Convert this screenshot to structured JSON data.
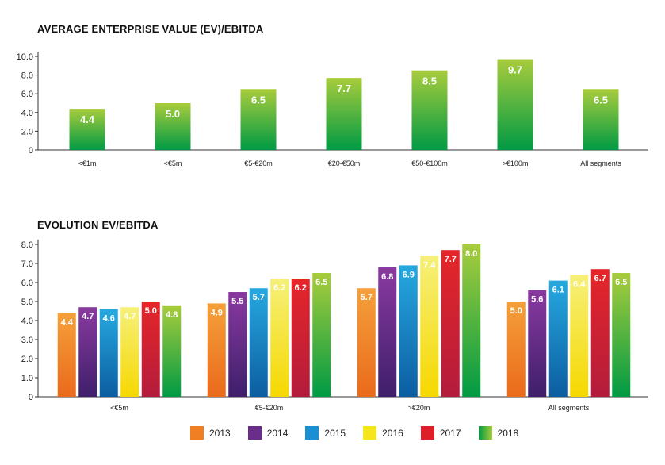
{
  "chart_data": [
    {
      "type": "bar",
      "title": "AVERAGE ENTERPRISE VALUE (EV)/EBITDA",
      "categories": [
        "<€1m",
        "<€5m",
        "€5-€20m",
        "€20-€50m",
        "€50-€100m",
        ">€100m",
        "All segments"
      ],
      "values": [
        4.4,
        5.0,
        6.5,
        7.7,
        8.5,
        9.7,
        6.5
      ],
      "value_labels": [
        "4.4",
        "5.0",
        "6.5",
        "7.7",
        "8.5",
        "9.7",
        "6.5"
      ],
      "yticks": [
        "10.0",
        "8.0",
        "6.0",
        "4.0",
        "2.0",
        "0"
      ],
      "ylim": [
        0,
        10
      ],
      "grid": false,
      "bar_gradient": [
        "#a8cc3c",
        "#009a44"
      ]
    },
    {
      "type": "bar",
      "title": "EVOLUTION EV/EBITDA",
      "categories": [
        "<€5m",
        "€5-€20m",
        ">€20m",
        "All segments"
      ],
      "series": [
        {
          "name": "2013",
          "values": [
            4.4,
            4.9,
            5.7,
            5.0
          ],
          "labels": [
            "4.4",
            "4.9",
            "5.7",
            "5.0"
          ],
          "color": "#f07f24"
        },
        {
          "name": "2014",
          "values": [
            4.7,
            5.5,
            6.8,
            5.6
          ],
          "labels": [
            "4.7",
            "5.5",
            "6.8",
            "5.6"
          ],
          "color": "#6b2d8c"
        },
        {
          "name": "2015",
          "values": [
            4.6,
            5.7,
            6.9,
            6.1
          ],
          "labels": [
            "4.6",
            "5.7",
            "6.9",
            "6.1"
          ],
          "color": "#1a8fd1"
        },
        {
          "name": "2016",
          "values": [
            4.7,
            6.2,
            7.4,
            6.4
          ],
          "labels": [
            "4.7",
            "6.2",
            "7.4",
            "6.4"
          ],
          "color": "#f4e51c"
        },
        {
          "name": "2017",
          "values": [
            5.0,
            6.2,
            7.7,
            6.7
          ],
          "labels": [
            "5.0",
            "6.2",
            "7.7",
            "6.7"
          ],
          "color": "#dd1f2a"
        },
        {
          "name": "2018",
          "values": [
            4.8,
            6.5,
            8.0,
            6.5
          ],
          "labels": [
            "4.8",
            "6.5",
            "8.0",
            "6.5"
          ],
          "color": "#5fb43a"
        }
      ],
      "yticks": [
        "8.0",
        "7.0",
        "6.0",
        "5.0",
        "4.0",
        "3.0",
        "2.0",
        "1.0",
        "0"
      ],
      "ylim": [
        0,
        8
      ],
      "grid": false,
      "legend_position": "bottom"
    }
  ]
}
